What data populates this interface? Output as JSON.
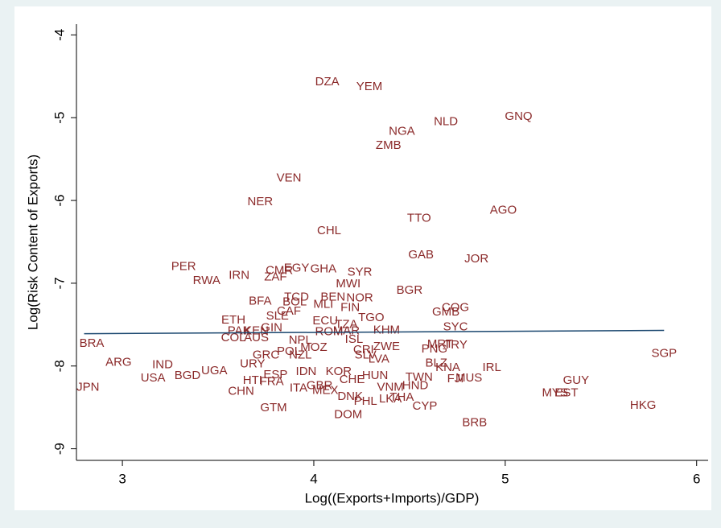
{
  "chart_data": {
    "type": "scatter",
    "x_label": "Log((Exports+Imports)/GDP)",
    "y_label": "Log(Risk Content of Exports)",
    "labels": [
      "DZA",
      "YEM",
      "NLD",
      "GNQ",
      "NGA",
      "ZMB",
      "VEN",
      "NER",
      "AGO",
      "TTO",
      "CHL",
      "GAB",
      "JOR",
      "PER",
      "RWA",
      "IRN",
      "CMR",
      "EGY",
      "ZAF",
      "GHA",
      "SYR",
      "MWI",
      "BGR",
      "BFA",
      "BOL",
      "TCD",
      "BEN",
      "NOR",
      "MLI",
      "FIN",
      "TGO",
      "CAF",
      "SLE",
      "ECU",
      "ETH",
      "GIN",
      "PAK",
      "KEN",
      "COL",
      "AUS",
      "TZA",
      "ROM",
      "MAR",
      "KHM",
      "SYC",
      "GMB",
      "COG",
      "PNG",
      "MRT",
      "TRY",
      "NPL",
      "ISL",
      "BRA",
      "CRI",
      "ZWE",
      "MOZ",
      "POL",
      "GRC",
      "NZL",
      "URY",
      "SLV",
      "LVA",
      "BLZ",
      "ARG",
      "IND",
      "USA",
      "BGD",
      "UGA",
      "KNA",
      "IRL",
      "SGP",
      "GUY",
      "MYS",
      "EST",
      "HKG",
      "BRB",
      "TWN",
      "MUS",
      "FJI",
      "VNM",
      "HND",
      "HUN",
      "CHN",
      "HTI",
      "FRA",
      "ESP",
      "IDN",
      "KOR",
      "ITA",
      "MEX",
      "GBR",
      "CHE",
      "PHL",
      "LKA",
      "THA",
      "CYP",
      "GTM",
      "DOM",
      "DNK",
      "JPN"
    ],
    "x": [
      4.07,
      4.29,
      4.69,
      5.07,
      4.46,
      4.39,
      3.87,
      3.72,
      4.99,
      4.55,
      4.08,
      4.56,
      4.85,
      3.32,
      3.44,
      3.61,
      3.82,
      3.91,
      3.8,
      4.05,
      4.24,
      4.18,
      4.5,
      3.72,
      3.9,
      3.91,
      4.1,
      4.24,
      4.05,
      4.19,
      4.3,
      3.87,
      3.81,
      4.06,
      3.58,
      3.78,
      3.61,
      3.7,
      3.58,
      3.7,
      4.17,
      4.08,
      4.17,
      4.38,
      4.74,
      4.69,
      4.74,
      4.63,
      4.66,
      4.74,
      3.93,
      4.21,
      2.84,
      4.26,
      4.38,
      4.0,
      3.87,
      3.75,
      3.93,
      3.68,
      4.27,
      4.34,
      4.64,
      2.98,
      3.21,
      3.16,
      3.34,
      3.48,
      4.7,
      4.93,
      5.83,
      5.37,
      5.26,
      5.32,
      5.72,
      4.84,
      4.55,
      4.81,
      4.74,
      4.4,
      4.53,
      4.32,
      3.62,
      3.68,
      3.78,
      3.8,
      3.96,
      4.13,
      3.92,
      4.06,
      4.03,
      4.2,
      4.27,
      4.4,
      4.46,
      4.58,
      3.79,
      4.18,
      4.19,
      2.82
    ],
    "values": [
      -4.57,
      -4.63,
      -5.05,
      -4.99,
      -5.17,
      -5.34,
      -5.73,
      -6.02,
      -6.12,
      -6.22,
      -6.37,
      -6.66,
      -6.71,
      -6.8,
      -6.97,
      -6.91,
      -6.85,
      -6.82,
      -6.93,
      -6.83,
      -6.87,
      -7.01,
      -7.09,
      -7.22,
      -7.23,
      -7.17,
      -7.17,
      -7.18,
      -7.26,
      -7.3,
      -7.42,
      -7.34,
      -7.4,
      -7.46,
      -7.45,
      -7.54,
      -7.58,
      -7.58,
      -7.66,
      -7.66,
      -7.5,
      -7.59,
      -7.58,
      -7.57,
      -7.53,
      -7.35,
      -7.3,
      -7.8,
      -7.74,
      -7.75,
      -7.69,
      -7.68,
      -7.73,
      -7.81,
      -7.77,
      -7.78,
      -7.83,
      -7.87,
      -7.87,
      -7.98,
      -7.87,
      -7.92,
      -7.97,
      -7.96,
      -7.99,
      -8.15,
      -8.12,
      -8.06,
      -8.02,
      -8.02,
      -7.85,
      -8.18,
      -8.33,
      -8.33,
      -8.48,
      -8.69,
      -8.14,
      -8.15,
      -8.16,
      -8.26,
      -8.24,
      -8.12,
      -8.31,
      -8.18,
      -8.19,
      -8.11,
      -8.07,
      -8.07,
      -8.27,
      -8.3,
      -8.24,
      -8.17,
      -8.43,
      -8.4,
      -8.38,
      -8.49,
      -8.51,
      -8.59,
      -8.37,
      -8.26
    ],
    "color": "#8b2a2a",
    "fit_line": {
      "x": [
        2.8,
        5.83
      ],
      "values": [
        -7.61,
        -7.57
      ],
      "color": "#1a476f"
    },
    "xlim": [
      2.76,
      6.06
    ],
    "ylim": [
      -9.14,
      -3.87
    ],
    "xticks": [
      3,
      4,
      5,
      6
    ],
    "yticks": [
      -4,
      -5,
      -6,
      -7,
      -8,
      -9
    ]
  }
}
